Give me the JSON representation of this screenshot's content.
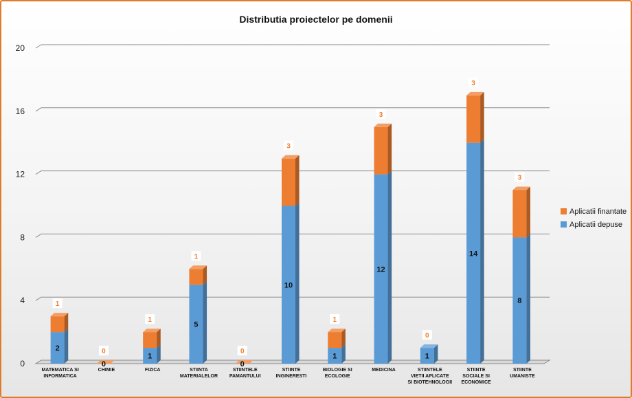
{
  "chart_data": {
    "type": "bar",
    "stacked": true,
    "title": "Distributia proiectelor pe domenii",
    "categories": [
      [
        "MATEMATICA SI",
        "INFORMATICA"
      ],
      [
        "CHIMIE"
      ],
      [
        "FIZICA"
      ],
      [
        "STIINTA",
        "MATERIALELOR"
      ],
      [
        "STIINTELE",
        "PAMANTULUI"
      ],
      [
        "STIINTE",
        "INGINERESTI"
      ],
      [
        "BIOLOGIE SI",
        "ECOLOGIE"
      ],
      [
        "MEDICINA"
      ],
      [
        "STIINTELE",
        "VIETII APLICATE",
        "SI BIOTEHNOLOGII"
      ],
      [
        "STIINTE",
        "SOCIALE SI",
        "ECONOMICE"
      ],
      [
        "STIINTE",
        "UMANISTE"
      ]
    ],
    "series": [
      {
        "name": "Aplicatii depuse",
        "color": "#5b9bd5",
        "values": [
          2,
          0,
          1,
          5,
          0,
          10,
          1,
          12,
          1,
          14,
          8
        ]
      },
      {
        "name": "Aplicatii finantate",
        "color": "#ed7d31",
        "values": [
          1,
          0,
          1,
          1,
          0,
          3,
          1,
          3,
          0,
          3,
          3
        ]
      }
    ],
    "ylim": [
      0,
      20
    ],
    "yticks": [
      0,
      4,
      8,
      12,
      16,
      20
    ],
    "grid": true,
    "legend": "right",
    "xlabel": "",
    "ylabel": ""
  }
}
